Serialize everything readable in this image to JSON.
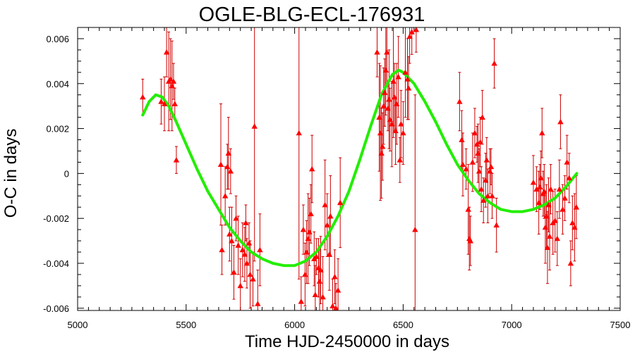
{
  "chart_data": {
    "type": "scatter",
    "title": "OGLE-BLG-ECL-176931",
    "xlabel": "Time HJD-2450000 in days",
    "ylabel": "O-C in days",
    "xlim": [
      5000,
      7500
    ],
    "ylim": [
      -0.0061,
      0.0065
    ],
    "x_ticks": [
      5000,
      5500,
      6000,
      6500,
      7000,
      7500
    ],
    "x_tick_labels": [
      "5000",
      "5500",
      "6000",
      "6500",
      "7000",
      "7500"
    ],
    "y_ticks": [
      -0.006,
      -0.004,
      -0.002,
      0,
      0.002,
      0.004,
      0.006
    ],
    "y_tick_labels": [
      "-0.006",
      "-0.004",
      "-0.002",
      "0",
      "0.002",
      "0.004",
      "0.006"
    ],
    "grid": false,
    "series": [
      {
        "kind": "points-with-error-bars",
        "marker": "triangle",
        "color": "#ff0000",
        "points": [
          [
            5300,
            0.0034,
            0.0008
          ],
          [
            5385,
            0.0032,
            0.001
          ],
          [
            5400,
            0.0031,
            0.0012
          ],
          [
            5410,
            0.0054,
            0.0011
          ],
          [
            5420,
            0.0041,
            0.0022
          ],
          [
            5428,
            0.0042,
            0.0018
          ],
          [
            5435,
            0.0039,
            0.002
          ],
          [
            5442,
            0.0041,
            0.0008
          ],
          [
            5448,
            0.0031,
            0.0007
          ],
          [
            5455,
            0.0006,
            0.0006
          ],
          [
            5660,
            0.0004,
            0.0027
          ],
          [
            5665,
            -0.0034,
            0.0011
          ],
          [
            5680,
            -0.001,
            0.0013
          ],
          [
            5690,
            0.0003,
            0.001
          ],
          [
            5695,
            0.0009,
            0.0016
          ],
          [
            5700,
            -0.0027,
            0.0012
          ],
          [
            5705,
            0.0001,
            0.001
          ],
          [
            5710,
            -0.003,
            0.0015
          ],
          [
            5720,
            -0.0044,
            0.0012
          ],
          [
            5730,
            -0.002,
            0.001
          ],
          [
            5740,
            -0.0032,
            0.0013
          ],
          [
            5750,
            -0.005,
            0.0012
          ],
          [
            5760,
            -0.0034,
            0.0012
          ],
          [
            5770,
            -0.0036,
            0.0012
          ],
          [
            5775,
            -0.0022,
            0.0008
          ],
          [
            5780,
            -0.004,
            0.0011
          ],
          [
            5790,
            -0.0031,
            0.0009
          ],
          [
            5795,
            -0.0045,
            0.0015
          ],
          [
            5808,
            -0.0047,
            0.0012
          ],
          [
            5815,
            0.0021,
            0.006
          ],
          [
            5830,
            -0.0058,
            0.0015
          ],
          [
            5840,
            -0.0034,
            0.0016
          ],
          [
            6020,
            0.0018,
            0.0065
          ],
          [
            6030,
            -0.0057,
            0.0011
          ],
          [
            6040,
            -0.0025,
            0.0011
          ],
          [
            6048,
            -0.0045,
            0.0014
          ],
          [
            6055,
            -0.0035,
            0.0014
          ],
          [
            6062,
            -0.0029,
            0.002
          ],
          [
            6068,
            -0.0026,
            0.0015
          ],
          [
            6075,
            -0.0018,
            0.0013
          ],
          [
            6080,
            0.0002,
            0.0015
          ],
          [
            6090,
            -0.0038,
            0.0012
          ],
          [
            6095,
            -0.0054,
            0.0013
          ],
          [
            6100,
            -0.0037,
            0.0008
          ],
          [
            6110,
            -0.0042,
            0.0013
          ],
          [
            6115,
            -0.0048,
            0.0014
          ],
          [
            6120,
            -0.0043,
            0.0015
          ],
          [
            6130,
            -0.0055,
            0.0018
          ],
          [
            6140,
            -0.0014,
            0.002
          ],
          [
            6150,
            -0.0023,
            0.0014
          ],
          [
            6160,
            -0.0036,
            0.0016
          ],
          [
            6165,
            -0.0019,
            0.0018
          ],
          [
            6175,
            -0.0059,
            0.0012
          ],
          [
            6185,
            -0.0046,
            0.0012
          ],
          [
            6190,
            -0.006,
            0.0011
          ],
          [
            6200,
            -0.0052,
            0.0014
          ],
          [
            6210,
            -0.0013,
            0.002
          ],
          [
            6380,
            0.0054,
            0.0011
          ],
          [
            6390,
            0.0025,
            0.0024
          ],
          [
            6395,
            0.0018,
            0.003
          ],
          [
            6400,
            0.0009,
            0.002
          ],
          [
            6405,
            0.0012,
            0.0015
          ],
          [
            6410,
            0.003,
            0.0017
          ],
          [
            6415,
            0.0036,
            0.0015
          ],
          [
            6420,
            0.0046,
            0.002
          ],
          [
            6425,
            0.0054,
            0.0015
          ],
          [
            6430,
            0.0029,
            0.001
          ],
          [
            6435,
            0.0033,
            0.0022
          ],
          [
            6440,
            0.0024,
            0.0014
          ],
          [
            6448,
            0.0022,
            0.0019
          ],
          [
            6455,
            0.0041,
            0.0025
          ],
          [
            6460,
            0.0034,
            0.0015
          ],
          [
            6465,
            0.0019,
            0.0015
          ],
          [
            6470,
            0.0031,
            0.0018
          ],
          [
            6478,
            0.0043,
            0.0018
          ],
          [
            6485,
            0.0006,
            0.001
          ],
          [
            6490,
            0.0022,
            0.0015
          ],
          [
            6500,
            0.0018,
            0.0014
          ],
          [
            6510,
            0.0045,
            0.002
          ],
          [
            6520,
            0.0042,
            0.0018
          ],
          [
            6525,
            0.0038,
            0.0014
          ],
          [
            6530,
            0.0061,
            0.0012
          ],
          [
            6540,
            0.0063,
            0.001
          ],
          [
            6555,
            -0.0025,
            0.006
          ],
          [
            6560,
            0.0064,
            0.001
          ],
          [
            6760,
            0.0032,
            0.0013
          ],
          [
            6770,
            0.0015,
            0.0013
          ],
          [
            6775,
            0.0004,
            0.0014
          ],
          [
            6790,
            0.0002,
            0.0009
          ],
          [
            6800,
            -0.0016,
            0.002
          ],
          [
            6805,
            -0.0029,
            0.0014
          ],
          [
            6810,
            -0.003,
            0.0011
          ],
          [
            6820,
            0.0005,
            0.0013
          ],
          [
            6830,
            0.0018,
            0.0011
          ],
          [
            6840,
            0.0013,
            0.0008
          ],
          [
            6845,
            0.0009,
            0.0013
          ],
          [
            6850,
            0.0001,
            0.001
          ],
          [
            6855,
            0.0014,
            0.0011
          ],
          [
            6860,
            -0.0007,
            0.001
          ],
          [
            6865,
            0.0025,
            0.0012
          ],
          [
            6870,
            -0.0012,
            0.001
          ],
          [
            6880,
            -0.0003,
            0.0012
          ],
          [
            6885,
            0.0006,
            0.001
          ],
          [
            6890,
            -0.001,
            0.0012
          ],
          [
            6900,
            0.0001,
            0.001
          ],
          [
            6905,
            0.0003,
            0.0008
          ],
          [
            6910,
            -0.001,
            0.001
          ],
          [
            6920,
            0.0049,
            0.0011
          ],
          [
            6930,
            -0.0023,
            0.0012
          ],
          [
            7100,
            -0.0004,
            0.0012
          ],
          [
            7115,
            -0.0007,
            0.001
          ],
          [
            7125,
            -0.0013,
            0.0014
          ],
          [
            7130,
            -0.0006,
            0.001
          ],
          [
            7135,
            -0.0002,
            0.0012
          ],
          [
            7140,
            0.0018,
            0.0011
          ],
          [
            7145,
            -0.0009,
            0.001
          ],
          [
            7150,
            -0.0008,
            0.0012
          ],
          [
            7155,
            -0.0024,
            0.0016
          ],
          [
            7160,
            -0.0019,
            0.0014
          ],
          [
            7165,
            -0.0033,
            0.0016
          ],
          [
            7170,
            -0.0014,
            0.0012
          ],
          [
            7175,
            -0.0028,
            0.0015
          ],
          [
            7180,
            -0.0007,
            0.0011
          ],
          [
            7190,
            -0.0022,
            0.0014
          ],
          [
            7200,
            -0.0021,
            0.0014
          ],
          [
            7210,
            -0.0029,
            0.0012
          ],
          [
            7220,
            -0.0007,
            0.0013
          ],
          [
            7225,
            0.0023,
            0.0012
          ],
          [
            7235,
            -0.0016,
            0.0011
          ],
          [
            7245,
            -0.0011,
            0.001
          ],
          [
            7255,
            0.0005,
            0.0012
          ],
          [
            7265,
            -0.0002,
            0.0011
          ],
          [
            7272,
            -0.004,
            0.001
          ],
          [
            7280,
            -0.0022,
            0.0012
          ],
          [
            7290,
            -0.0024,
            0.0015
          ],
          [
            7298,
            -0.0015,
            0.0014
          ]
        ]
      },
      {
        "kind": "fit-curve",
        "color": "#22ee00",
        "points": [
          [
            5300,
            0.0026
          ],
          [
            5330,
            0.0032
          ],
          [
            5360,
            0.0035
          ],
          [
            5390,
            0.0034
          ],
          [
            5420,
            0.003
          ],
          [
            5450,
            0.0024
          ],
          [
            5500,
            0.0013
          ],
          [
            5550,
            0.0002
          ],
          [
            5600,
            -0.0008
          ],
          [
            5650,
            -0.0016
          ],
          [
            5700,
            -0.0024
          ],
          [
            5750,
            -0.003
          ],
          [
            5800,
            -0.0035
          ],
          [
            5850,
            -0.0038
          ],
          [
            5900,
            -0.004
          ],
          [
            5950,
            -0.0041
          ],
          [
            6000,
            -0.0041
          ],
          [
            6050,
            -0.0039
          ],
          [
            6100,
            -0.0035
          ],
          [
            6150,
            -0.0028
          ],
          [
            6200,
            -0.0019
          ],
          [
            6250,
            -0.0008
          ],
          [
            6300,
            0.0006
          ],
          [
            6350,
            0.0021
          ],
          [
            6400,
            0.0035
          ],
          [
            6450,
            0.0044
          ],
          [
            6480,
            0.0046
          ],
          [
            6500,
            0.0045
          ],
          [
            6550,
            0.004
          ],
          [
            6600,
            0.0032
          ],
          [
            6650,
            0.0023
          ],
          [
            6700,
            0.0013
          ],
          [
            6750,
            0.0004
          ],
          [
            6800,
            -0.0003
          ],
          [
            6850,
            -0.0009
          ],
          [
            6900,
            -0.0013
          ],
          [
            6950,
            -0.0016
          ],
          [
            7000,
            -0.0017
          ],
          [
            7050,
            -0.0017
          ],
          [
            7100,
            -0.0016
          ],
          [
            7150,
            -0.0014
          ],
          [
            7200,
            -0.0011
          ],
          [
            7250,
            -0.0006
          ],
          [
            7300,
            0.0
          ]
        ]
      }
    ]
  }
}
